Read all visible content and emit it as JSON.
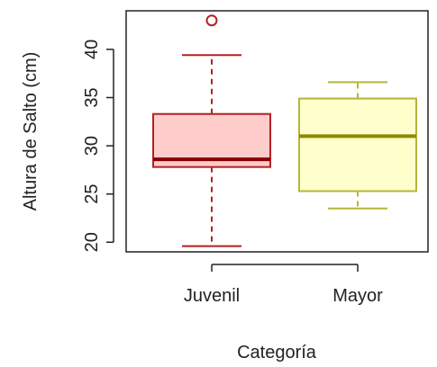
{
  "chart_data": {
    "type": "boxplot",
    "title": "",
    "xlabel": "Categoría",
    "ylabel": "Altura de Salto (cm)",
    "ylim": [
      19,
      44
    ],
    "y_ticks": [
      20,
      25,
      30,
      35,
      40
    ],
    "y_tick_labels": [
      "20",
      "25",
      "30",
      "35",
      "40"
    ],
    "grid": false,
    "categories": [
      "Juvenil",
      "Mayor"
    ],
    "boxes": [
      {
        "name": "Juvenil",
        "whisker_low": 19.6,
        "q1": 27.8,
        "median": 28.6,
        "q3": 33.3,
        "whisker_high": 39.4,
        "outliers": [
          43.0
        ],
        "fill_color": "#ffcccc",
        "line_color": "#b22222",
        "median_color": "#8b0000"
      },
      {
        "name": "Mayor",
        "whisker_low": 23.5,
        "q1": 25.3,
        "median": 31.0,
        "q3": 34.9,
        "whisker_high": 36.6,
        "outliers": [],
        "fill_color": "#ffffcc",
        "line_color": "#b5b53a",
        "median_color": "#8b8b00"
      }
    ]
  }
}
